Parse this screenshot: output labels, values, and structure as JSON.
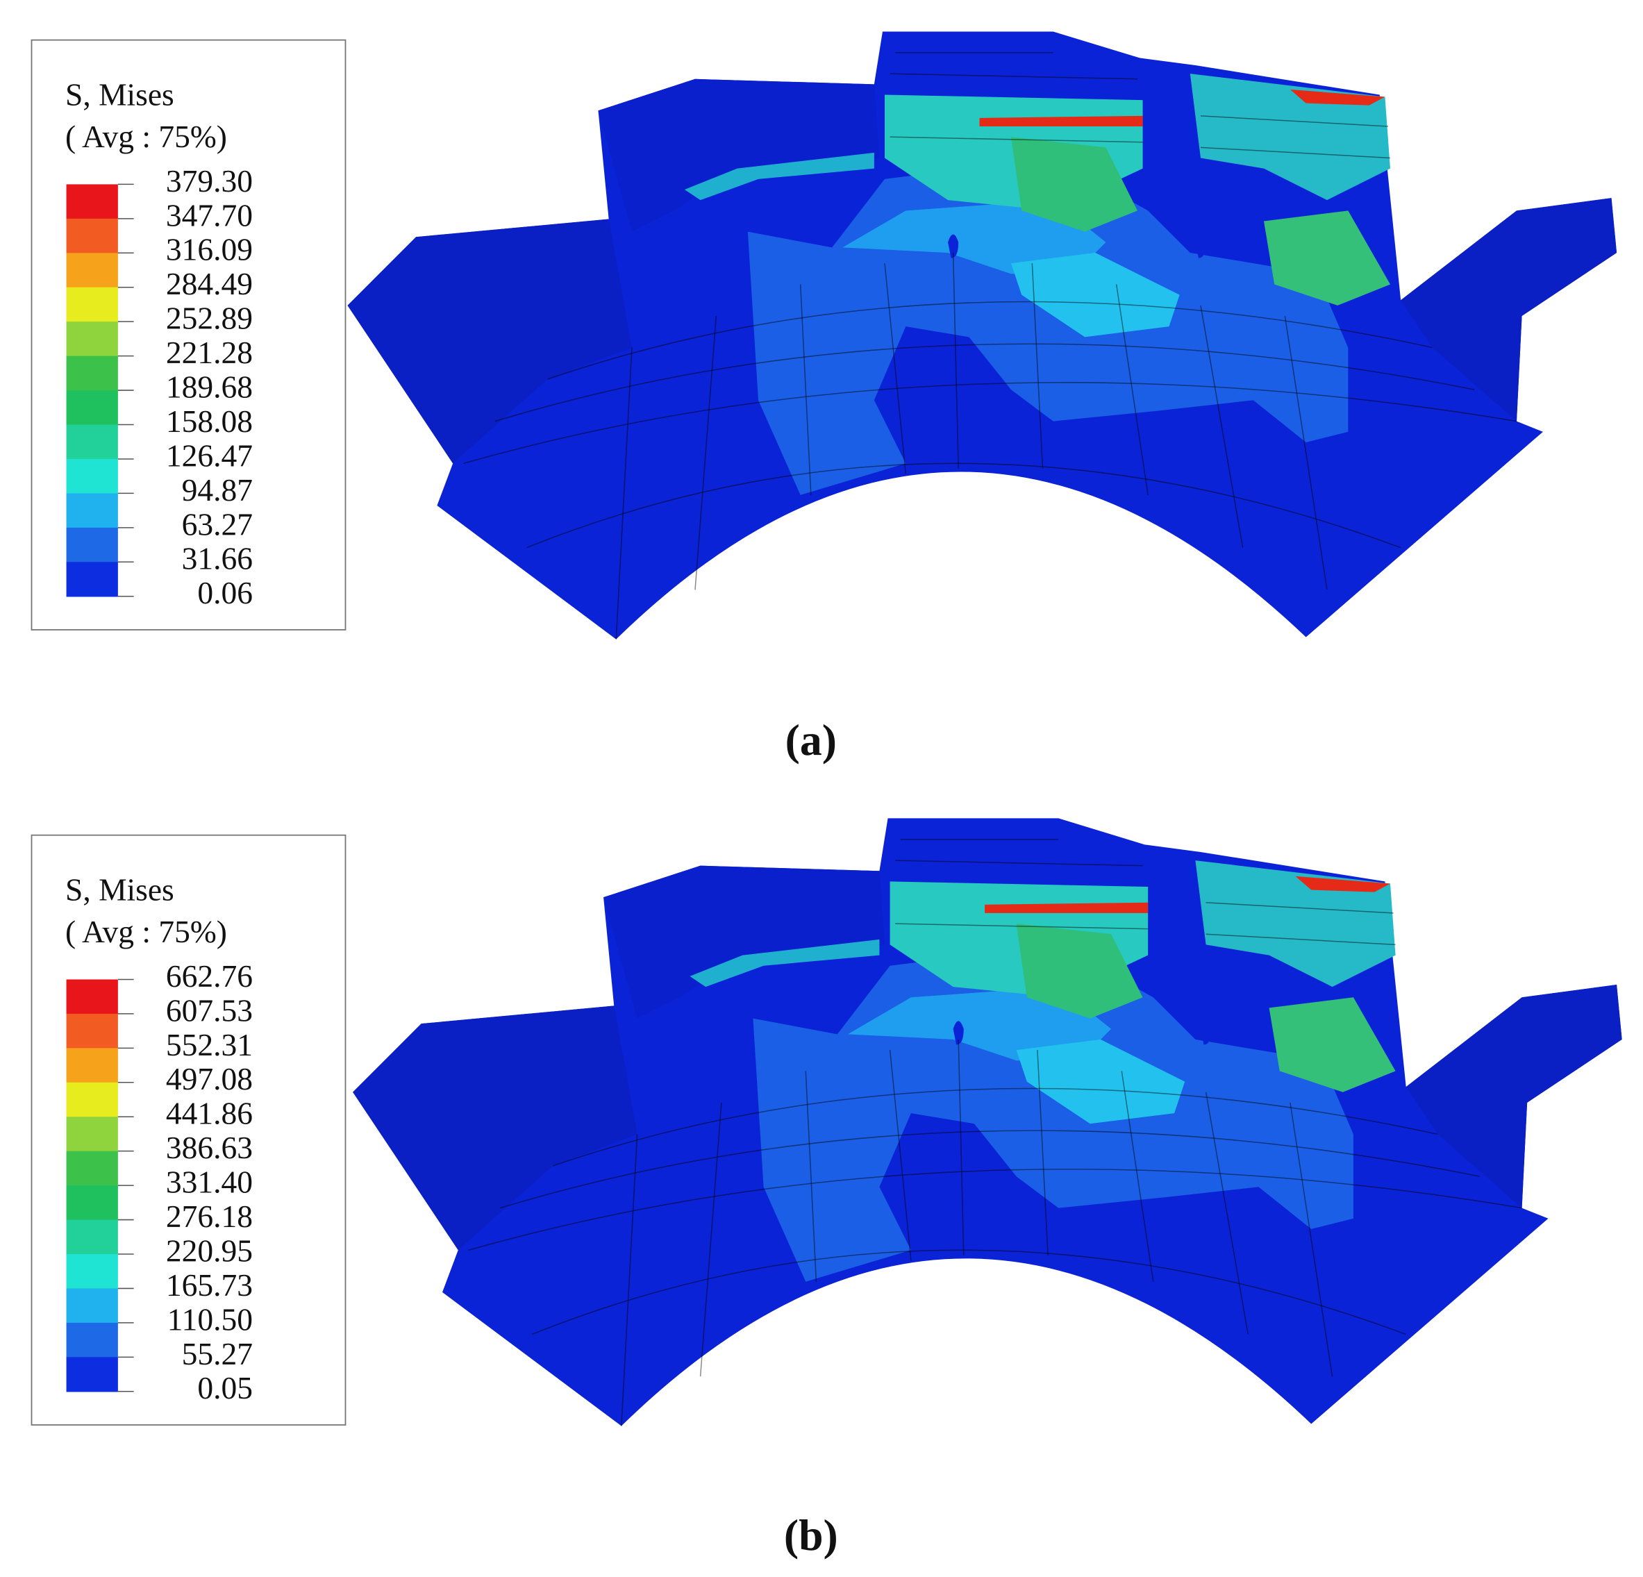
{
  "panels": [
    {
      "legend": {
        "title": "S, Mises",
        "subtitle": "( Avg : 75%)",
        "levels": [
          "379.30",
          "347.70",
          "316.09",
          "284.49",
          "252.89",
          "221.28",
          "189.68",
          "158.08",
          "126.47",
          "94.87",
          "63.27",
          "31.66",
          "0.06"
        ]
      },
      "label": "(a)"
    },
    {
      "legend": {
        "title": "S, Mises",
        "subtitle": "( Avg : 75%)",
        "levels": [
          "662.76",
          "607.53",
          "552.31",
          "497.08",
          "441.86",
          "386.63",
          "331.40",
          "276.18",
          "220.95",
          "165.73",
          "110.50",
          "55.27",
          "0.05"
        ]
      },
      "label": "(b)"
    }
  ]
}
